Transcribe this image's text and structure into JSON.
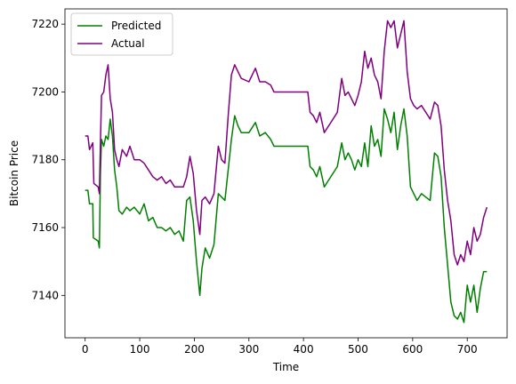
{
  "chart_data": {
    "type": "line",
    "title": "",
    "xlabel": "Time",
    "ylabel": "Bitcoin Price",
    "xlim": [
      -37,
      773
    ],
    "ylim": [
      7127.5,
      7224.5
    ],
    "xticks": [
      0,
      100,
      200,
      300,
      400,
      500,
      600,
      700
    ],
    "yticks": [
      7140,
      7160,
      7180,
      7200,
      7220
    ],
    "legend_position": "top-left",
    "grid": false,
    "series": [
      {
        "name": "Predicted",
        "color": "#008000",
        "points": [
          [
            0,
            7171
          ],
          [
            5,
            7171
          ],
          [
            8,
            7167
          ],
          [
            14,
            7167
          ],
          [
            15,
            7157
          ],
          [
            24,
            7156
          ],
          [
            26,
            7154
          ],
          [
            28,
            7176
          ],
          [
            30,
            7186
          ],
          [
            34,
            7184
          ],
          [
            38,
            7187
          ],
          [
            42,
            7186
          ],
          [
            46,
            7192
          ],
          [
            50,
            7187
          ],
          [
            54,
            7177
          ],
          [
            58,
            7172
          ],
          [
            62,
            7165
          ],
          [
            68,
            7164
          ],
          [
            76,
            7166
          ],
          [
            82,
            7165
          ],
          [
            90,
            7166
          ],
          [
            100,
            7164
          ],
          [
            108,
            7167
          ],
          [
            116,
            7162
          ],
          [
            124,
            7163
          ],
          [
            132,
            7160
          ],
          [
            140,
            7160
          ],
          [
            148,
            7159
          ],
          [
            156,
            7160
          ],
          [
            164,
            7158
          ],
          [
            172,
            7159
          ],
          [
            180,
            7156
          ],
          [
            186,
            7168
          ],
          [
            192,
            7169
          ],
          [
            198,
            7162
          ],
          [
            204,
            7150
          ],
          [
            210,
            7140
          ],
          [
            214,
            7148
          ],
          [
            220,
            7154
          ],
          [
            228,
            7151
          ],
          [
            236,
            7155
          ],
          [
            244,
            7170
          ],
          [
            250,
            7169
          ],
          [
            256,
            7168
          ],
          [
            262,
            7177
          ],
          [
            268,
            7186
          ],
          [
            274,
            7193
          ],
          [
            280,
            7190
          ],
          [
            286,
            7188
          ],
          [
            300,
            7188
          ],
          [
            312,
            7191
          ],
          [
            320,
            7187
          ],
          [
            330,
            7188
          ],
          [
            340,
            7186
          ],
          [
            346,
            7184
          ],
          [
            360,
            7184
          ],
          [
            380,
            7184
          ],
          [
            408,
            7184
          ],
          [
            412,
            7178
          ],
          [
            418,
            7177
          ],
          [
            424,
            7175
          ],
          [
            430,
            7178
          ],
          [
            438,
            7172
          ],
          [
            446,
            7174
          ],
          [
            454,
            7176
          ],
          [
            462,
            7178
          ],
          [
            470,
            7185
          ],
          [
            476,
            7180
          ],
          [
            482,
            7182
          ],
          [
            488,
            7180
          ],
          [
            494,
            7177
          ],
          [
            500,
            7180
          ],
          [
            506,
            7178
          ],
          [
            512,
            7185
          ],
          [
            518,
            7178
          ],
          [
            524,
            7190
          ],
          [
            530,
            7184
          ],
          [
            536,
            7186
          ],
          [
            542,
            7181
          ],
          [
            548,
            7195
          ],
          [
            554,
            7192
          ],
          [
            560,
            7188
          ],
          [
            566,
            7194
          ],
          [
            572,
            7183
          ],
          [
            578,
            7190
          ],
          [
            584,
            7195
          ],
          [
            590,
            7187
          ],
          [
            596,
            7172
          ],
          [
            602,
            7170
          ],
          [
            608,
            7168
          ],
          [
            616,
            7170
          ],
          [
            624,
            7169
          ],
          [
            632,
            7168
          ],
          [
            640,
            7182
          ],
          [
            646,
            7181
          ],
          [
            652,
            7175
          ],
          [
            658,
            7160
          ],
          [
            664,
            7149
          ],
          [
            670,
            7138
          ],
          [
            676,
            7134
          ],
          [
            682,
            7133
          ],
          [
            688,
            7135
          ],
          [
            694,
            7132
          ],
          [
            700,
            7143
          ],
          [
            706,
            7138
          ],
          [
            712,
            7143
          ],
          [
            718,
            7135
          ],
          [
            724,
            7142
          ],
          [
            730,
            7147
          ],
          [
            736,
            7147
          ]
        ]
      },
      {
        "name": "Actual",
        "color": "#800080",
        "points": [
          [
            0,
            7187
          ],
          [
            5,
            7187
          ],
          [
            8,
            7183
          ],
          [
            14,
            7185
          ],
          [
            16,
            7173
          ],
          [
            24,
            7172
          ],
          [
            26,
            7170
          ],
          [
            28,
            7185
          ],
          [
            30,
            7199
          ],
          [
            34,
            7200
          ],
          [
            38,
            7205
          ],
          [
            42,
            7208
          ],
          [
            46,
            7198
          ],
          [
            50,
            7194
          ],
          [
            54,
            7183
          ],
          [
            58,
            7180
          ],
          [
            62,
            7178
          ],
          [
            68,
            7183
          ],
          [
            76,
            7181
          ],
          [
            82,
            7184
          ],
          [
            90,
            7180
          ],
          [
            100,
            7180
          ],
          [
            108,
            7179
          ],
          [
            116,
            7177
          ],
          [
            124,
            7175
          ],
          [
            132,
            7174
          ],
          [
            140,
            7175
          ],
          [
            148,
            7173
          ],
          [
            156,
            7174
          ],
          [
            164,
            7172
          ],
          [
            172,
            7172
          ],
          [
            180,
            7172
          ],
          [
            186,
            7175
          ],
          [
            192,
            7181
          ],
          [
            198,
            7176
          ],
          [
            204,
            7165
          ],
          [
            210,
            7158
          ],
          [
            214,
            7168
          ],
          [
            220,
            7169
          ],
          [
            228,
            7167
          ],
          [
            236,
            7170
          ],
          [
            244,
            7184
          ],
          [
            250,
            7180
          ],
          [
            256,
            7179
          ],
          [
            262,
            7193
          ],
          [
            268,
            7205
          ],
          [
            274,
            7208
          ],
          [
            280,
            7206
          ],
          [
            286,
            7204
          ],
          [
            300,
            7203
          ],
          [
            312,
            7207
          ],
          [
            320,
            7203
          ],
          [
            330,
            7203
          ],
          [
            340,
            7202
          ],
          [
            346,
            7200
          ],
          [
            360,
            7200
          ],
          [
            380,
            7200
          ],
          [
            408,
            7200
          ],
          [
            412,
            7194
          ],
          [
            418,
            7193
          ],
          [
            424,
            7191
          ],
          [
            430,
            7194
          ],
          [
            438,
            7188
          ],
          [
            446,
            7190
          ],
          [
            454,
            7192
          ],
          [
            462,
            7194
          ],
          [
            470,
            7204
          ],
          [
            476,
            7199
          ],
          [
            482,
            7200
          ],
          [
            488,
            7198
          ],
          [
            494,
            7196
          ],
          [
            500,
            7199
          ],
          [
            506,
            7203
          ],
          [
            512,
            7212
          ],
          [
            518,
            7207
          ],
          [
            524,
            7210
          ],
          [
            530,
            7205
          ],
          [
            536,
            7203
          ],
          [
            542,
            7198
          ],
          [
            548,
            7212
          ],
          [
            554,
            7221
          ],
          [
            560,
            7219
          ],
          [
            566,
            7221
          ],
          [
            572,
            7213
          ],
          [
            578,
            7217
          ],
          [
            584,
            7221
          ],
          [
            590,
            7206
          ],
          [
            596,
            7198
          ],
          [
            602,
            7196
          ],
          [
            608,
            7195
          ],
          [
            616,
            7196
          ],
          [
            624,
            7194
          ],
          [
            632,
            7192
          ],
          [
            640,
            7197
          ],
          [
            646,
            7196
          ],
          [
            652,
            7190
          ],
          [
            658,
            7177
          ],
          [
            664,
            7168
          ],
          [
            670,
            7162
          ],
          [
            676,
            7152
          ],
          [
            682,
            7149
          ],
          [
            688,
            7152
          ],
          [
            694,
            7150
          ],
          [
            700,
            7156
          ],
          [
            706,
            7152
          ],
          [
            712,
            7160
          ],
          [
            718,
            7156
          ],
          [
            724,
            7158
          ],
          [
            730,
            7163
          ],
          [
            736,
            7166
          ]
        ]
      }
    ]
  }
}
